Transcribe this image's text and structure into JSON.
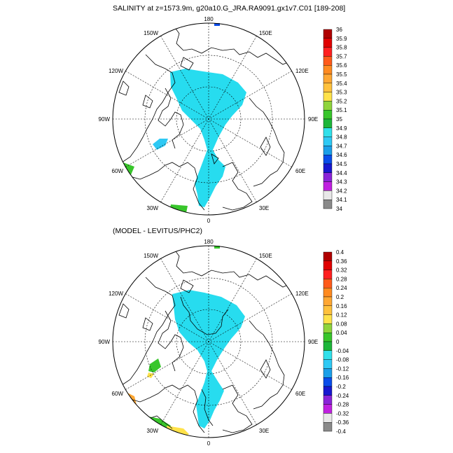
{
  "panels": [
    {
      "title": "SALINITY at z=1573.9m, g20a10.G_JRA.RA9091.gx1v7.C01 [189-208]",
      "lon_labels": {
        "top": "180",
        "bottom": "0",
        "left": "90W",
        "right": "90E",
        "upper_left_outer": "120W",
        "upper_left_inner": "150W",
        "upper_right_inner": "150E",
        "upper_right_outer": "120E",
        "lower_left_outer": "60W",
        "lower_left_inner": "30W",
        "lower_right_inner": "30E",
        "lower_right_outer": "60E"
      },
      "colorbar": {
        "labels": [
          "36",
          "35.9",
          "35.8",
          "35.7",
          "35.6",
          "35.5",
          "35.4",
          "35.3",
          "35.2",
          "35.1",
          "35",
          "34.9",
          "34.8",
          "34.7",
          "34.6",
          "34.5",
          "34.4",
          "34.3",
          "34.2",
          "34.1",
          "34"
        ],
        "colors": [
          "#b00000",
          "#e00000",
          "#ff2020",
          "#ff5a1a",
          "#ff8a20",
          "#ffa733",
          "#ffc13d",
          "#ffe24a",
          "#8fd43c",
          "#38c62b",
          "#1db63a",
          "#30e0ea",
          "#2ec9f4",
          "#1b9fe8",
          "#0a4dea",
          "#1818d0",
          "#8a24d8",
          "#c020e0",
          "#e8e8e8",
          "#8a8a8a"
        ],
        "value_min": 34,
        "value_max": 36
      },
      "fields": [
        {
          "color": "#27dcef",
          "label": "34.9 region"
        },
        {
          "color": "#2ec9f4",
          "label": "34.8 patch"
        },
        {
          "color": "#38c62b",
          "label": "35.1 patch"
        }
      ]
    },
    {
      "title": "(MODEL - LEVITUS/PHC2)",
      "lon_labels": {
        "top": "180",
        "bottom": "0",
        "left": "90W",
        "right": "90E",
        "upper_left_outer": "120W",
        "upper_left_inner": "150W",
        "upper_right_inner": "150E",
        "upper_right_outer": "120E",
        "lower_left_outer": "60W",
        "lower_left_inner": "30W",
        "lower_right_inner": "30E",
        "lower_right_outer": "60E"
      },
      "colorbar": {
        "labels": [
          "0.4",
          "0.36",
          "0.32",
          "0.28",
          "0.24",
          "0.2",
          "0.16",
          "0.12",
          "0.08",
          "0.04",
          "0",
          "-0.04",
          "-0.08",
          "-0.12",
          "-0.16",
          "-0.2",
          "-0.24",
          "-0.28",
          "-0.32",
          "-0.36",
          "-0.4"
        ],
        "colors": [
          "#b00000",
          "#e00000",
          "#ff2020",
          "#ff5a1a",
          "#ff8a20",
          "#ffa733",
          "#ffc13d",
          "#ffe24a",
          "#8fd43c",
          "#38c62b",
          "#1db63a",
          "#30e0ea",
          "#2ec9f4",
          "#1b9fe8",
          "#0a4dea",
          "#1818d0",
          "#8a24d8",
          "#c020e0",
          "#e8e8e8",
          "#8a8a8a"
        ],
        "value_min": -0.4,
        "value_max": 0.4
      },
      "fields": [
        {
          "color": "#27dcef",
          "label": "-0.04 region"
        },
        {
          "color": "#38c62b",
          "label": "0.04 patch"
        },
        {
          "color": "#ffa733",
          "label": "0.2 patch"
        },
        {
          "color": "#ffe24a",
          "label": "0.12 patch"
        }
      ]
    }
  ]
}
